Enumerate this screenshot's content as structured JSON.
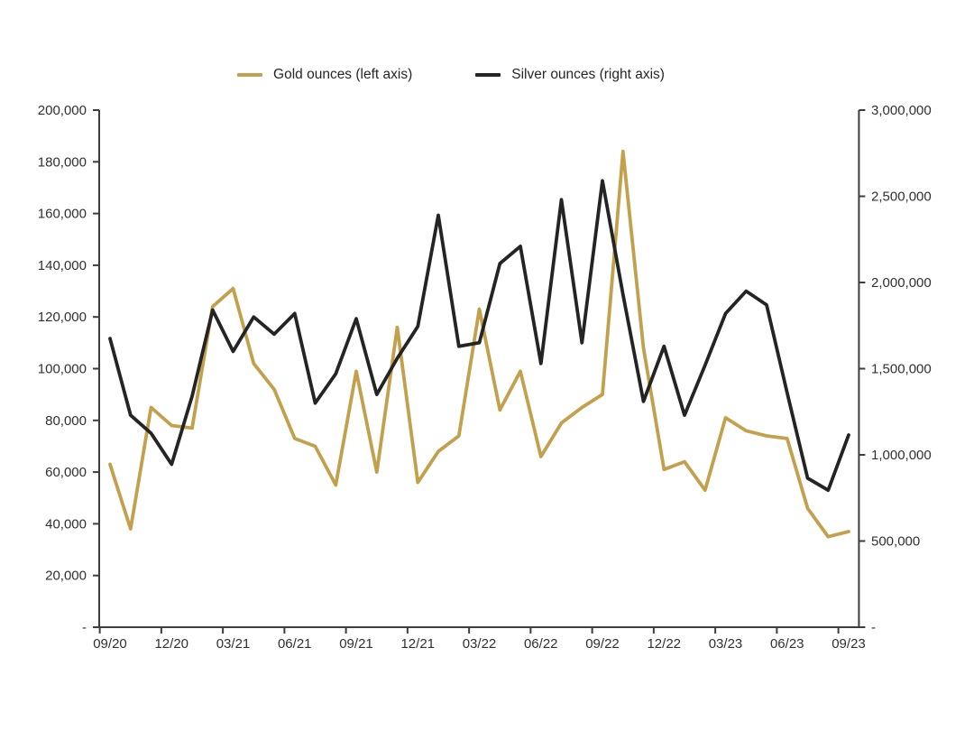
{
  "chart_data": {
    "type": "line",
    "grid": false,
    "legend_position": "top",
    "categories": [
      "09/20",
      "10/20",
      "11/20",
      "12/20",
      "01/21",
      "02/21",
      "03/21",
      "04/21",
      "05/21",
      "06/21",
      "07/21",
      "08/21",
      "09/21",
      "10/21",
      "11/21",
      "12/21",
      "01/22",
      "02/22",
      "03/22",
      "04/22",
      "05/22",
      "06/22",
      "07/22",
      "08/22",
      "09/22",
      "10/22",
      "11/22",
      "12/22",
      "01/23",
      "02/23",
      "03/23",
      "04/23",
      "05/23",
      "06/23",
      "07/23",
      "08/23",
      "09/23"
    ],
    "x_tick_labels": [
      "09/20",
      "12/20",
      "03/21",
      "06/21",
      "09/21",
      "12/21",
      "03/22",
      "06/22",
      "09/22",
      "12/22",
      "03/23",
      "06/23",
      "09/23"
    ],
    "series": [
      {
        "name": "Gold ounces (left axis)",
        "axis": "left",
        "color": "#C2A04C",
        "values": [
          63000,
          38000,
          85000,
          78000,
          77000,
          124000,
          131000,
          102000,
          92000,
          73000,
          70000,
          55000,
          99000,
          60000,
          116000,
          56000,
          68000,
          74000,
          123000,
          84000,
          99000,
          66000,
          79000,
          85000,
          90000,
          184000,
          108000,
          61000,
          64000,
          53000,
          81000,
          76000,
          74000,
          73000,
          46000,
          35000,
          37000
        ]
      },
      {
        "name": "Silver ounces (right axis)",
        "axis": "right",
        "color": "#242424",
        "values": [
          1675000,
          1230000,
          1125000,
          945000,
          1340000,
          1840000,
          1600000,
          1800000,
          1700000,
          1820000,
          1300000,
          1470000,
          1790000,
          1350000,
          1560000,
          1745000,
          2390000,
          1630000,
          1650000,
          2110000,
          2210000,
          1530000,
          2480000,
          1650000,
          2590000,
          1930000,
          1310000,
          1630000,
          1230000,
          1520000,
          1820000,
          1950000,
          1870000,
          1360000,
          865000,
          795000,
          1115000
        ]
      }
    ],
    "left_axis": {
      "min": 0,
      "max": 200000,
      "step": 20000,
      "tick_labels": [
        "-",
        "20,000",
        "40,000",
        "60,000",
        "80,000",
        "100,000",
        "120,000",
        "140,000",
        "160,000",
        "180,000",
        "200,000"
      ]
    },
    "right_axis": {
      "min": 0,
      "max": 3000000,
      "step": 500000,
      "tick_labels": [
        "-",
        "500,000",
        "1,000,000",
        "1,500,000",
        "2,000,000",
        "2,500,000",
        "3,000,000"
      ]
    }
  }
}
